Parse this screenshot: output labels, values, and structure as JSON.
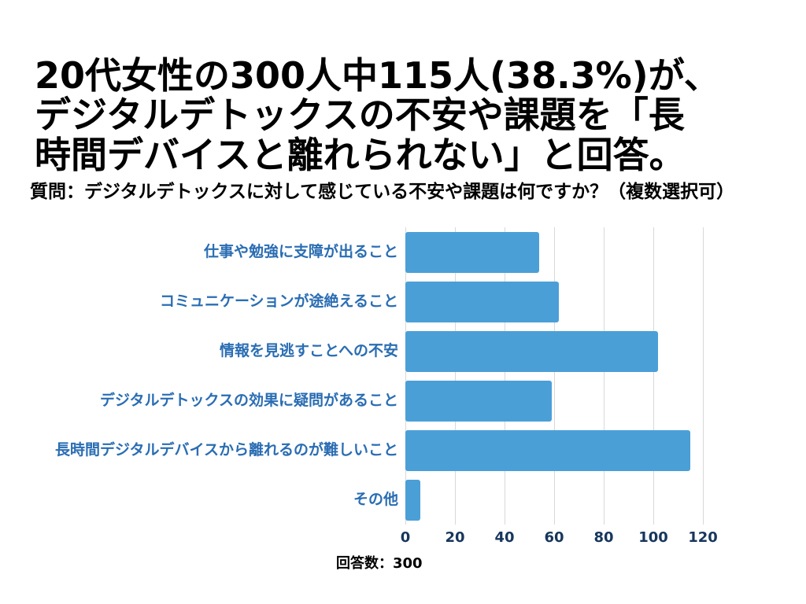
{
  "header": {
    "title_lines": [
      "20代女性の300人中115人(38.3%)が、",
      "デジタルデトックスの不安や課題を「長",
      "時間デバイスと離れられない」と回答。"
    ],
    "question": "質問：デジタルデトックスに対して感じている不安や課題は何ですか？（複数選択可）"
  },
  "chart_data": {
    "type": "bar",
    "orientation": "horizontal",
    "title": "",
    "categories": [
      "仕事や勉強に支障が出ること",
      "コミュニケーションが途絶えること",
      "情報を見逃すことへの不安",
      "デジタルデトックスの効果に疑問があること",
      "長時間デジタルデバイスから離れるのが難しいこと",
      "その他"
    ],
    "values": [
      54,
      62,
      102,
      59,
      115,
      6
    ],
    "x_ticks": [
      0,
      20,
      40,
      60,
      80,
      100,
      120
    ],
    "xlim": [
      0,
      120
    ],
    "grid": true,
    "legend": false,
    "bar_color": "#4b9fd7",
    "label_color": "#2a6db3",
    "tick_color": "#17365c",
    "grid_color": "#d8d8d8",
    "footer": "回答数：300"
  }
}
